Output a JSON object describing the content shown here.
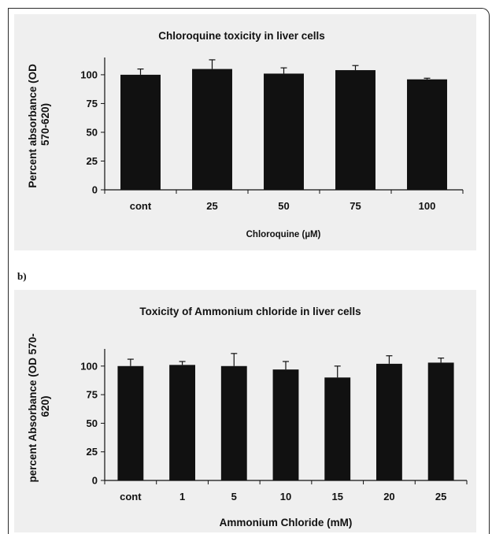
{
  "subfigure_label_b": "b)",
  "chart_data": [
    {
      "type": "bar",
      "title": "Chloroquine toxicity in liver cells",
      "xlabel": "Chloroquine (µM)",
      "ylabel_lines": [
        "Percent absorbance (OD",
        "570-620)"
      ],
      "categories": [
        "cont",
        "25",
        "50",
        "75",
        "100"
      ],
      "values": [
        100,
        105,
        101,
        104,
        96
      ],
      "errors": [
        5,
        8,
        5,
        4,
        1
      ],
      "ylim": [
        0,
        115
      ],
      "yticks": [
        "0",
        "25",
        "50",
        "75",
        "100"
      ],
      "grid": false,
      "legend": "none",
      "bar_color": "#111111",
      "background_color": "#efefef"
    },
    {
      "type": "bar",
      "title": "Toxicity of Ammonium chloride in liver cells",
      "xlabel": "Ammonium Chloride (mM)",
      "ylabel_lines": [
        "percent Absorbance (OD 570-",
        "620)"
      ],
      "categories": [
        "cont",
        "1",
        "5",
        "10",
        "15",
        "20",
        "25"
      ],
      "values": [
        100,
        101,
        100,
        97,
        90,
        102,
        103
      ],
      "errors": [
        6,
        3,
        11,
        7,
        10,
        7,
        4
      ],
      "ylim": [
        0,
        115
      ],
      "yticks": [
        "0",
        "25",
        "50",
        "75",
        "100"
      ],
      "grid": false,
      "legend": "none",
      "bar_color": "#111111",
      "background_color": "#efefef"
    }
  ]
}
